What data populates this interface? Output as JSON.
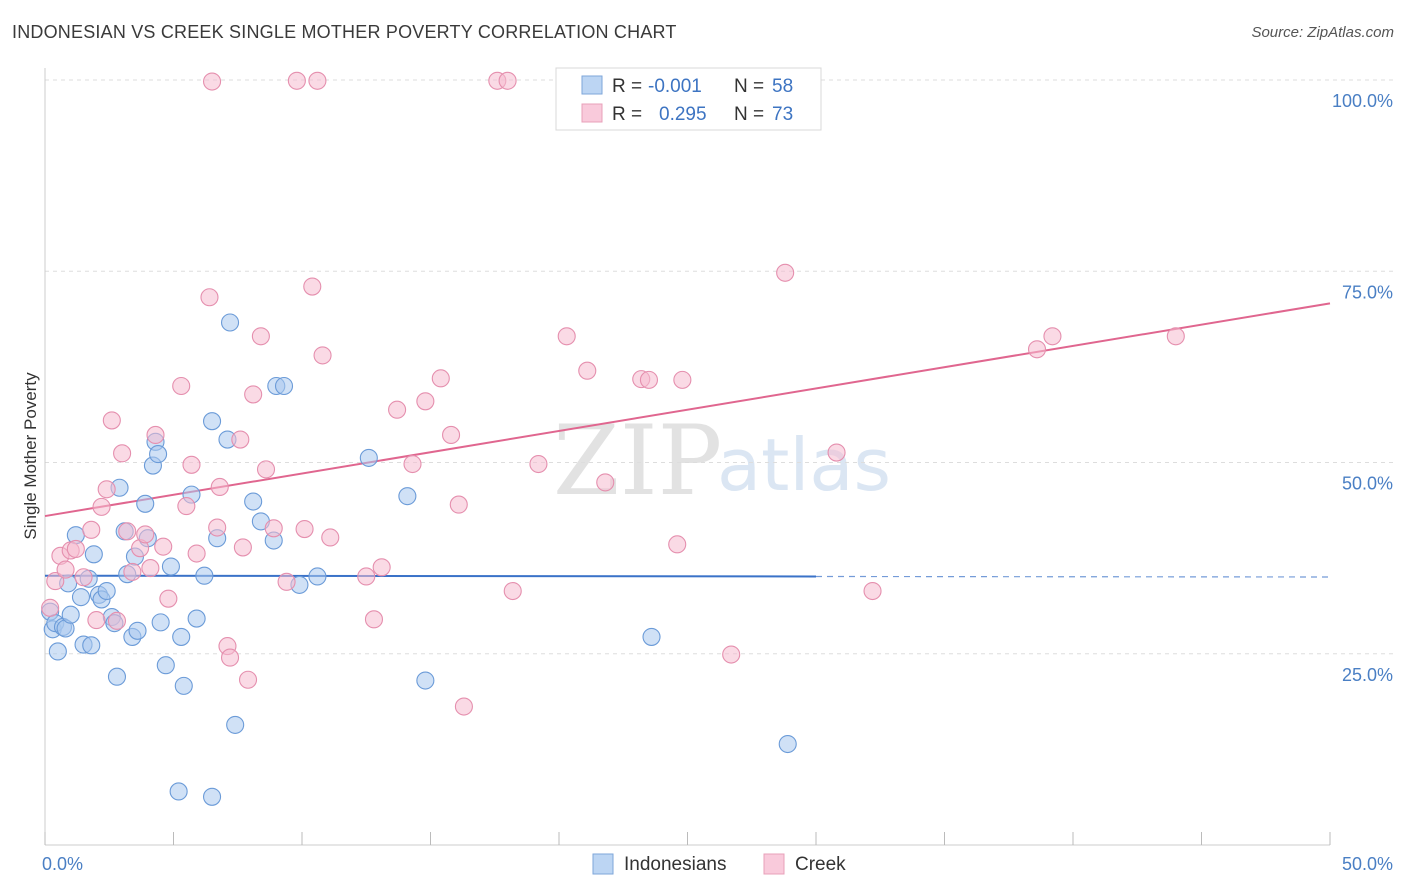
{
  "title": "INDONESIAN VS CREEK SINGLE MOTHER POVERTY CORRELATION CHART",
  "source": "Source: ZipAtlas.com",
  "watermark": {
    "zip": "ZIP",
    "atlas": "atlas"
  },
  "chart_data": {
    "type": "scatter",
    "ylabel": "Single Mother Poverty",
    "xlim": [
      0,
      50
    ],
    "ylim": [
      0,
      100
    ],
    "x_ticks": [
      0,
      5,
      10,
      15,
      20,
      25,
      30,
      35,
      40,
      45,
      50
    ],
    "x_tick_labels": {
      "left": "0.0%",
      "right": "50.0%"
    },
    "y_ticks": [
      {
        "value": 25,
        "label": "25.0%"
      },
      {
        "value": 50,
        "label": "50.0%"
      },
      {
        "value": 75,
        "label": "75.0%"
      },
      {
        "value": 100,
        "label": "100.0%"
      }
    ],
    "legend": {
      "rows": [
        {
          "r_label": "R =",
          "r_value": "-0.001",
          "n_label": "N =",
          "n_value": "58"
        },
        {
          "r_label": "R =",
          "r_value": "0.295",
          "n_label": "N =",
          "n_value": "73"
        }
      ]
    },
    "series": [
      {
        "name": "Indonesians",
        "color": "#a9c8ef",
        "stroke": "#6b9bd8",
        "trend": {
          "x0": 0,
          "y0": 35.2,
          "x1": 30,
          "y1": 35.1,
          "dash_to": 50,
          "color": "#3a72c8"
        },
        "points": [
          [
            0.2,
            30.5
          ],
          [
            0.3,
            28.2
          ],
          [
            0.4,
            29.0
          ],
          [
            0.5,
            25.3
          ],
          [
            0.7,
            28.5
          ],
          [
            0.8,
            28.3
          ],
          [
            0.9,
            34.2
          ],
          [
            1.0,
            30.1
          ],
          [
            1.2,
            40.5
          ],
          [
            1.4,
            32.4
          ],
          [
            1.5,
            26.2
          ],
          [
            1.7,
            34.8
          ],
          [
            1.8,
            26.1
          ],
          [
            1.9,
            38.0
          ],
          [
            2.1,
            32.7
          ],
          [
            2.2,
            32.1
          ],
          [
            2.4,
            33.2
          ],
          [
            2.6,
            29.8
          ],
          [
            2.7,
            29.0
          ],
          [
            2.8,
            22.0
          ],
          [
            2.9,
            46.7
          ],
          [
            3.1,
            41.0
          ],
          [
            3.2,
            35.4
          ],
          [
            3.4,
            27.2
          ],
          [
            3.5,
            37.7
          ],
          [
            3.6,
            28.0
          ],
          [
            3.9,
            44.6
          ],
          [
            4.0,
            40.1
          ],
          [
            4.2,
            49.6
          ],
          [
            4.3,
            52.7
          ],
          [
            4.4,
            51.1
          ],
          [
            4.5,
            29.1
          ],
          [
            4.7,
            23.5
          ],
          [
            4.9,
            36.4
          ],
          [
            5.2,
            7.0
          ],
          [
            5.3,
            27.2
          ],
          [
            5.4,
            20.8
          ],
          [
            5.7,
            45.8
          ],
          [
            5.9,
            29.6
          ],
          [
            6.2,
            35.2
          ],
          [
            6.5,
            6.3
          ],
          [
            6.5,
            55.4
          ],
          [
            6.7,
            40.1
          ],
          [
            7.1,
            53.0
          ],
          [
            7.2,
            68.3
          ],
          [
            7.4,
            15.7
          ],
          [
            8.1,
            44.9
          ],
          [
            8.4,
            42.3
          ],
          [
            8.9,
            39.8
          ],
          [
            9.0,
            60.0
          ],
          [
            9.3,
            60.0
          ],
          [
            9.9,
            34.0
          ],
          [
            10.6,
            35.1
          ],
          [
            12.6,
            50.6
          ],
          [
            14.1,
            45.6
          ],
          [
            14.8,
            21.5
          ],
          [
            23.6,
            27.2
          ],
          [
            28.9,
            13.2
          ]
        ]
      },
      {
        "name": "Creek",
        "color": "#f6bcd0",
        "stroke": "#e58fae",
        "trend": {
          "x0": 0,
          "y0": 43.0,
          "x1": 50,
          "y1": 70.8,
          "color": "#e0668f"
        },
        "points": [
          [
            0.2,
            31.0
          ],
          [
            0.4,
            34.5
          ],
          [
            0.6,
            37.8
          ],
          [
            0.8,
            36.0
          ],
          [
            1.0,
            38.5
          ],
          [
            1.2,
            38.7
          ],
          [
            1.5,
            35.0
          ],
          [
            1.8,
            41.2
          ],
          [
            2.0,
            29.4
          ],
          [
            2.2,
            44.2
          ],
          [
            2.4,
            46.5
          ],
          [
            2.6,
            55.5
          ],
          [
            2.8,
            29.3
          ],
          [
            3.0,
            51.2
          ],
          [
            3.2,
            41.0
          ],
          [
            3.4,
            35.7
          ],
          [
            3.7,
            38.8
          ],
          [
            3.9,
            40.6
          ],
          [
            4.1,
            36.2
          ],
          [
            4.3,
            53.6
          ],
          [
            4.6,
            39.0
          ],
          [
            4.8,
            32.2
          ],
          [
            5.3,
            60.0
          ],
          [
            5.5,
            44.3
          ],
          [
            5.7,
            49.7
          ],
          [
            5.9,
            38.1
          ],
          [
            6.4,
            71.6
          ],
          [
            6.5,
            99.8
          ],
          [
            6.7,
            41.5
          ],
          [
            6.8,
            46.8
          ],
          [
            7.1,
            26.0
          ],
          [
            7.2,
            24.5
          ],
          [
            7.6,
            53.0
          ],
          [
            7.7,
            38.9
          ],
          [
            7.9,
            21.6
          ],
          [
            8.1,
            58.9
          ],
          [
            8.4,
            66.5
          ],
          [
            8.6,
            49.1
          ],
          [
            8.9,
            41.4
          ],
          [
            9.4,
            34.4
          ],
          [
            9.8,
            99.9
          ],
          [
            10.1,
            41.3
          ],
          [
            10.4,
            73.0
          ],
          [
            10.6,
            99.9
          ],
          [
            10.8,
            64.0
          ],
          [
            11.1,
            40.2
          ],
          [
            12.5,
            35.1
          ],
          [
            12.8,
            29.5
          ],
          [
            13.1,
            36.3
          ],
          [
            13.7,
            56.9
          ],
          [
            14.3,
            49.8
          ],
          [
            14.8,
            58.0
          ],
          [
            15.4,
            61.0
          ],
          [
            15.8,
            53.6
          ],
          [
            16.1,
            44.5
          ],
          [
            16.3,
            18.1
          ],
          [
            17.6,
            99.9
          ],
          [
            18.0,
            99.9
          ],
          [
            18.2,
            33.2
          ],
          [
            19.2,
            49.8
          ],
          [
            20.3,
            66.5
          ],
          [
            21.1,
            62.0
          ],
          [
            21.8,
            47.4
          ],
          [
            23.2,
            60.9
          ],
          [
            23.5,
            60.8
          ],
          [
            24.6,
            39.3
          ],
          [
            24.8,
            60.8
          ],
          [
            26.7,
            24.9
          ],
          [
            28.8,
            74.8
          ],
          [
            30.8,
            51.3
          ],
          [
            32.2,
            33.2
          ],
          [
            38.6,
            64.8
          ],
          [
            39.2,
            66.5
          ],
          [
            44.0,
            66.5
          ]
        ]
      }
    ]
  }
}
